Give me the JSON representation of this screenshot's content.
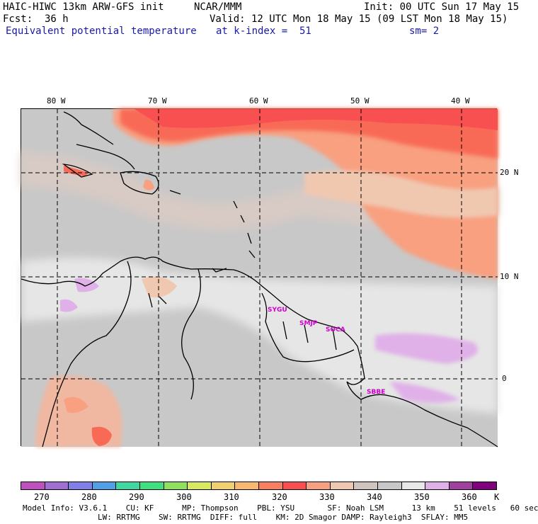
{
  "header": {
    "model": "HAIC-HIWC 13km ARW-GFS init",
    "org": "NCAR/MMM",
    "init": "Init: 00 UTC Sun 17 May 15",
    "fcst": "Fcst:  36 h",
    "valid": "Valid: 12 UTC Mon 18 May 15 (09 LST Mon 18 May 15)",
    "field": "Equivalent potential temperature",
    "level": "at k-index =  51",
    "smooth": "sm= 2"
  },
  "map": {
    "lon_labels": [
      "80 W",
      "70 W",
      "60 W",
      "50 W",
      "40 W"
    ],
    "lat_labels": [
      "20 N",
      "10 N",
      "0"
    ],
    "stations": [
      "SYGU",
      "SMJP",
      "SOCA",
      "SBBE"
    ],
    "legend_unit": "K"
  },
  "colorbar": {
    "labels": [
      "270",
      "280",
      "290",
      "300",
      "310",
      "320",
      "330",
      "340",
      "350",
      "360",
      "K"
    ],
    "colors": [
      "#c050c0",
      "#a070d0",
      "#8080e8",
      "#50a0e8",
      "#40d8a0",
      "#40e080",
      "#90e060",
      "#d8e860",
      "#f0d070",
      "#f8b870",
      "#f88060",
      "#f85050",
      "#f8a080",
      "#f0c8b0",
      "#d0c4c0",
      "#c8c8c8",
      "#e8e8e8",
      "#e0b0e8",
      "#a040a0",
      "#800080"
    ]
  },
  "footer": {
    "line1": "Model Info: V3.6.1    CU: KF      MP: Thompson    PBL: YSU       SF: Noah LSM      13 km    51 levels   60 sec",
    "line2": "                LW: RRTMG    SW: RRTMG  DIFF: full    KM: 2D Smagor DAMP: Rayleigh3  SFLAY: MM5"
  }
}
